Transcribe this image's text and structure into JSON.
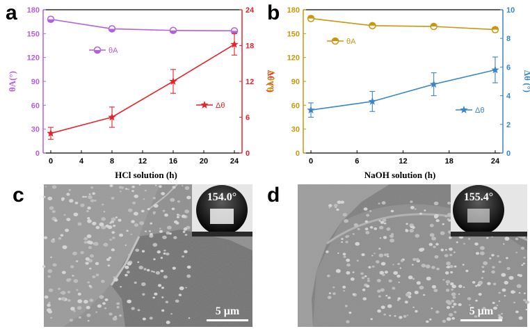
{
  "panels": {
    "a": {
      "letter": "a"
    },
    "b": {
      "letter": "b"
    },
    "c": {
      "letter": "c",
      "scale_label": "5 μm",
      "contact_angle": "154.0°"
    },
    "d": {
      "letter": "d",
      "scale_label": "5 μm",
      "contact_angle": "155.4°"
    }
  },
  "chart_data": [
    {
      "type": "line",
      "panel": "a",
      "xlabel": "HCl solution  (h)",
      "ylabel_left": "θA(°)",
      "ylabel_right": "Δθ (°)",
      "x": [
        0,
        8,
        16,
        24
      ],
      "xlim": [
        -1,
        25
      ],
      "xticks": [
        0,
        4,
        8,
        12,
        16,
        20,
        24
      ],
      "ylim_left": [
        0,
        180
      ],
      "yticks_left": [
        0,
        30,
        60,
        90,
        120,
        150,
        180
      ],
      "ylim_right": [
        0,
        24
      ],
      "yticks_right": [
        0,
        6,
        12,
        18,
        24
      ],
      "colors": {
        "left": "#b45ee0",
        "right": "#e8222a"
      },
      "series": [
        {
          "name": "θA",
          "axis": "left",
          "marker": "circle",
          "values": [
            168,
            156,
            154,
            153.5
          ],
          "errors": [
            3,
            3,
            2,
            2
          ]
        },
        {
          "name": "Δθ",
          "axis": "right",
          "marker": "star",
          "values": [
            3.3,
            6.0,
            12.0,
            18.2
          ],
          "errors": [
            1.0,
            1.7,
            2.0,
            1.8
          ]
        }
      ],
      "legend": [
        {
          "label": "θA",
          "placement": "upper-left"
        },
        {
          "label": "Δθ",
          "placement": "middle-right"
        }
      ]
    },
    {
      "type": "line",
      "panel": "b",
      "xlabel": "NaOH solution  (h)",
      "ylabel_left": "θA(°)",
      "ylabel_right": "Δθ (°)",
      "x": [
        0,
        8,
        16,
        24
      ],
      "xlim": [
        -1,
        25
      ],
      "xticks": [
        0,
        6,
        12,
        18,
        24
      ],
      "ylim_left": [
        0,
        180
      ],
      "yticks_left": [
        0,
        30,
        60,
        90,
        120,
        150,
        180
      ],
      "ylim_right": [
        0,
        10
      ],
      "yticks_right": [
        0,
        2,
        4,
        6,
        8,
        10
      ],
      "colors": {
        "left": "#c9960c",
        "right": "#3a85c6"
      },
      "series": [
        {
          "name": "θA",
          "axis": "left",
          "marker": "half-circle",
          "values": [
            169,
            160,
            159,
            155
          ],
          "errors": [
            3,
            2,
            2,
            3
          ]
        },
        {
          "name": "Δθ",
          "axis": "right",
          "marker": "star",
          "values": [
            3.0,
            3.6,
            4.8,
            5.8
          ],
          "errors": [
            0.5,
            0.7,
            0.8,
            0.9
          ]
        }
      ],
      "legend": [
        {
          "label": "θA",
          "placement": "upper-left"
        },
        {
          "label": "Δθ",
          "placement": "middle-right"
        }
      ]
    }
  ]
}
